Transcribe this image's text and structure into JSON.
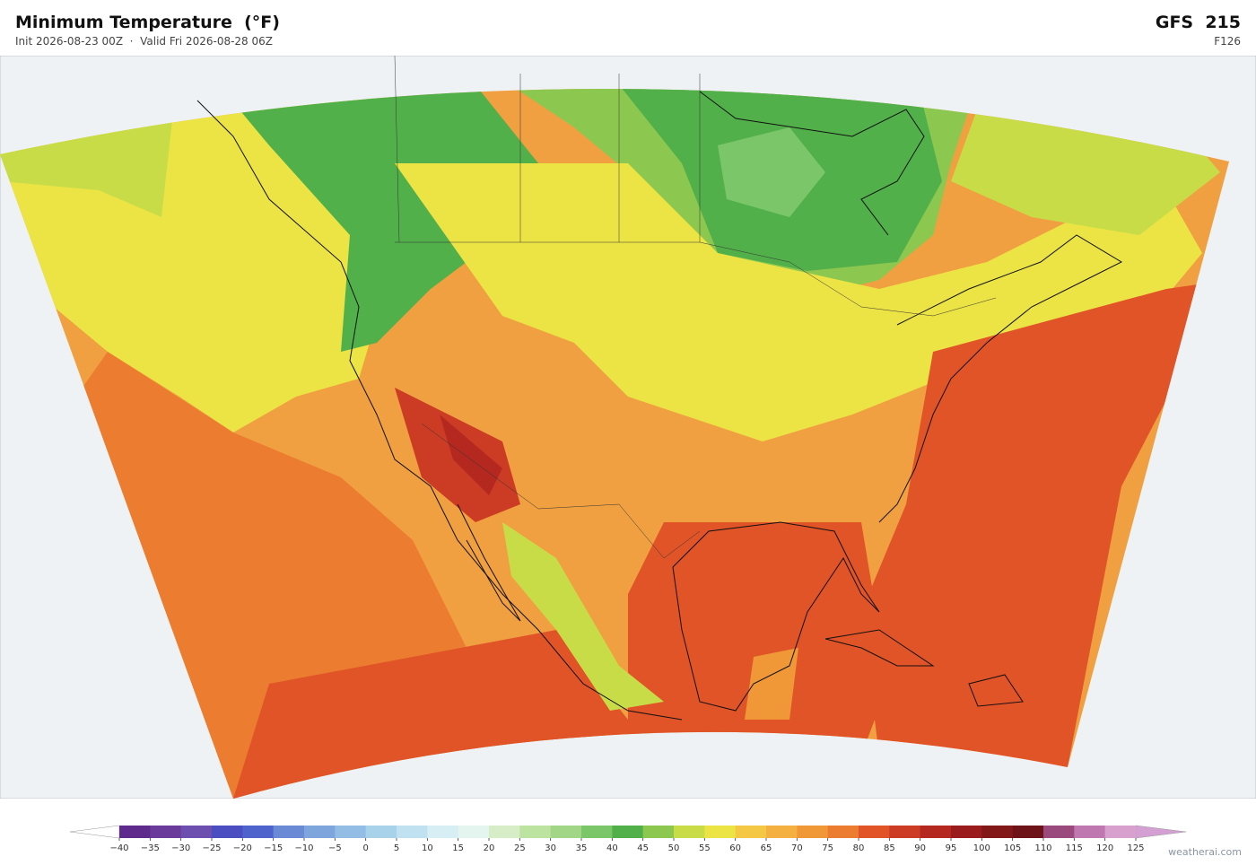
{
  "header": {
    "title": "Minimum Temperature  (°F)",
    "subtitle": "Init 2026-08-23 00Z  ·  Valid Fri 2026-08-28 06Z",
    "model": "GFS  215",
    "forecast_hour": "F126"
  },
  "colorbar": {
    "ticks": [
      {
        "value": -40,
        "label": "−40"
      },
      {
        "value": -35,
        "label": "−35"
      },
      {
        "value": -30,
        "label": "−30"
      },
      {
        "value": -25,
        "label": "−25"
      },
      {
        "value": -20,
        "label": "−20"
      },
      {
        "value": -15,
        "label": "−15"
      },
      {
        "value": -10,
        "label": "−10"
      },
      {
        "value": -5,
        "label": "−5"
      },
      0,
      5,
      10,
      15,
      20,
      25,
      30,
      35,
      40,
      45,
      50,
      55,
      60,
      65,
      70,
      75,
      80,
      85,
      90,
      95,
      100,
      105,
      110,
      115,
      120,
      125
    ],
    "colors": [
      "#5e2a8c",
      "#6a3b9a",
      "#6d4fb0",
      "#4a4ec0",
      "#4f63cc",
      "#6a8ad6",
      "#7fa6dc",
      "#93bde4",
      "#a8d2ea",
      "#c0e2f0",
      "#d6eef4",
      "#e4f4ee",
      "#d6edc8",
      "#bde3a0",
      "#a0d686",
      "#7cc66a",
      "#52b04a",
      "#8cc850",
      "#c8dc48",
      "#ece444",
      "#f4c844",
      "#f4b040",
      "#f09838",
      "#ec7c30",
      "#e05428",
      "#cc3c24",
      "#b42820",
      "#9a1c1c",
      "#821818",
      "#6e1418",
      "#9a4a7c",
      "#c078b0",
      "#d8a0cc"
    ],
    "under_color": "#ffffff",
    "over_color": "#d4a0d4"
  },
  "credit": "weatherai.com"
}
